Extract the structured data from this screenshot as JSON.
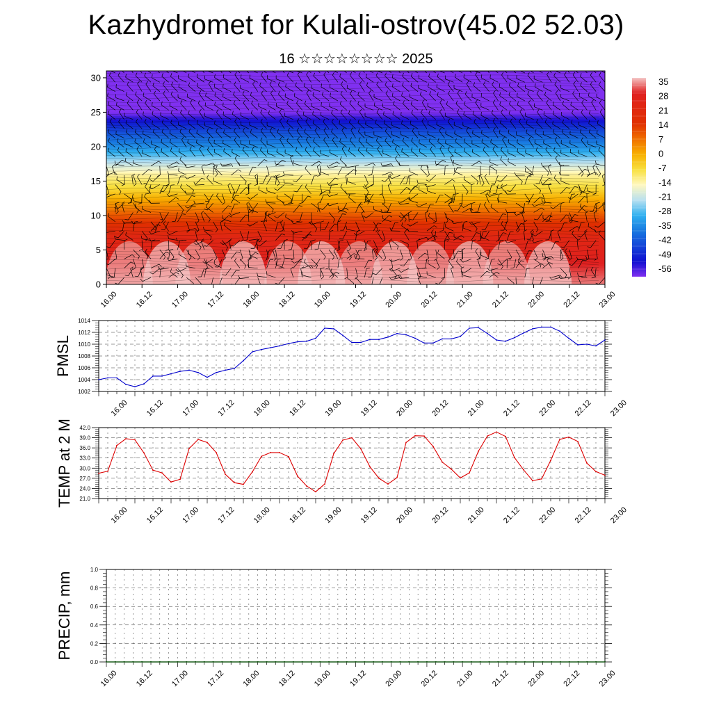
{
  "header": {
    "title": "Kazhydromet for Kulali-ostrov(45.02 52.03)",
    "subtitle": "16 ☆☆☆☆☆☆☆☆ 2025"
  },
  "chart_data": [
    {
      "type": "heatmap",
      "title": "Kazhydromet for Kulali-ostrov(45.02 52.03)",
      "subtitle": "16 ☆☆☆☆☆☆☆☆ 2025",
      "x_ticks": [
        "16.00",
        "16.12",
        "17.00",
        "17.12",
        "18.00",
        "18.12",
        "19.00",
        "19.12",
        "20.00",
        "20.12",
        "21.00",
        "21.12",
        "22.00",
        "22.12",
        "23.00"
      ],
      "y_ticks": [
        0,
        5,
        10,
        15,
        20,
        25,
        30
      ],
      "ylim": [
        0,
        31
      ],
      "colorbar_labels": [
        35,
        28,
        21,
        14,
        7,
        0,
        -7,
        -14,
        -21,
        -28,
        -35,
        -42,
        -49,
        -56
      ],
      "colorbar_stops": [
        {
          "v": 35,
          "color": "#f4c4c4"
        },
        {
          "v": 28,
          "color": "#e02020"
        },
        {
          "v": 14,
          "color": "#e03000"
        },
        {
          "v": 7,
          "color": "#f07000"
        },
        {
          "v": 0,
          "color": "#f8b000"
        },
        {
          "v": -7,
          "color": "#f8e040"
        },
        {
          "v": -14,
          "color": "#fff8c0"
        },
        {
          "v": -21,
          "color": "#b8e0f0"
        },
        {
          "v": -28,
          "color": "#30b0f0"
        },
        {
          "v": -35,
          "color": "#1878e0"
        },
        {
          "v": -49,
          "color": "#1010d0"
        },
        {
          "v": -56,
          "color": "#8030f0"
        }
      ],
      "grid": false,
      "wind_barbs": true
    },
    {
      "type": "line",
      "ylabel": "PMSL",
      "x_ticks": [
        "16.00",
        "16.12",
        "17.00",
        "17.12",
        "18.00",
        "18.12",
        "19.00",
        "19.12",
        "20.00",
        "20.12",
        "21.00",
        "21.12",
        "22.00",
        "22.12",
        "23.00"
      ],
      "y_ticks": [
        1002,
        1004,
        1006,
        1008,
        1010,
        1012,
        1014
      ],
      "ylim": [
        1002,
        1014
      ],
      "color": "#0000cc",
      "grid": true,
      "x_step_hours": 3,
      "values": [
        1004.0,
        1004.3,
        1004.3,
        1003.2,
        1002.8,
        1003.3,
        1004.6,
        1004.6,
        1005.0,
        1005.4,
        1005.6,
        1005.2,
        1004.4,
        1005.2,
        1005.6,
        1005.9,
        1007.2,
        1008.7,
        1009.1,
        1009.4,
        1009.7,
        1010.1,
        1010.4,
        1010.5,
        1011.0,
        1012.7,
        1012.6,
        1011.5,
        1010.3,
        1010.3,
        1010.8,
        1010.8,
        1011.2,
        1011.8,
        1011.6,
        1011.0,
        1010.2,
        1010.2,
        1010.9,
        1010.9,
        1011.3,
        1012.7,
        1012.8,
        1011.8,
        1010.7,
        1010.5,
        1011.1,
        1011.9,
        1012.6,
        1012.9,
        1012.9,
        1012.2,
        1011.0,
        1009.9,
        1010.0,
        1009.7,
        1010.7
      ]
    },
    {
      "type": "line",
      "ylabel": "TEMP at 2 M",
      "x_ticks": [
        "16.00",
        "16.12",
        "17.00",
        "17.12",
        "18.00",
        "18.12",
        "19.00",
        "19.12",
        "20.00",
        "20.12",
        "21.00",
        "21.12",
        "22.00",
        "22.12",
        "23.00"
      ],
      "y_ticks": [
        "21.0",
        "24.0",
        "27.0",
        "30.0",
        "33.0",
        "36.0",
        "39.0",
        "42.0"
      ],
      "ylim": [
        21,
        42
      ],
      "color": "#dd0000",
      "grid": true,
      "x_step_hours": 3,
      "values": [
        28.5,
        29.1,
        36.7,
        38.7,
        38.4,
        34.5,
        29.4,
        28.6,
        25.9,
        26.7,
        35.8,
        38.5,
        37.6,
        34.6,
        28.2,
        25.7,
        25.2,
        28.9,
        33.5,
        34.6,
        34.6,
        33.4,
        27.6,
        24.7,
        23.0,
        25.3,
        34.3,
        38.3,
        39.0,
        35.7,
        30.4,
        27.0,
        25.3,
        27.2,
        37.6,
        39.6,
        39.5,
        36.4,
        31.8,
        29.7,
        27.1,
        28.6,
        35.0,
        39.5,
        40.7,
        39.4,
        33.1,
        29.5,
        26.3,
        26.8,
        32.3,
        38.5,
        39.2,
        37.9,
        31.5,
        29.0,
        27.9
      ]
    },
    {
      "type": "bar",
      "ylabel": "PRECIP, mm",
      "x_ticks": [
        "16.00",
        "16.12",
        "17.00",
        "17.12",
        "18.00",
        "18.12",
        "19.00",
        "19.12",
        "20.00",
        "20.12",
        "21.00",
        "21.12",
        "22.00",
        "22.12",
        "23.00"
      ],
      "y_ticks": [
        "0.0",
        "0.2",
        "0.4",
        "0.6",
        "0.8",
        "1.0"
      ],
      "ylim": [
        0,
        1
      ],
      "grid": true,
      "x_step_hours": 3,
      "values": [
        0,
        0,
        0,
        0,
        0,
        0,
        0,
        0,
        0,
        0,
        0,
        0,
        0,
        0,
        0,
        0,
        0,
        0,
        0,
        0,
        0,
        0,
        0,
        0,
        0,
        0,
        0,
        0,
        0,
        0,
        0,
        0,
        0,
        0,
        0,
        0,
        0,
        0,
        0,
        0,
        0,
        0,
        0,
        0,
        0,
        0,
        0,
        0,
        0,
        0,
        0,
        0,
        0,
        0,
        0,
        0,
        0
      ]
    }
  ]
}
